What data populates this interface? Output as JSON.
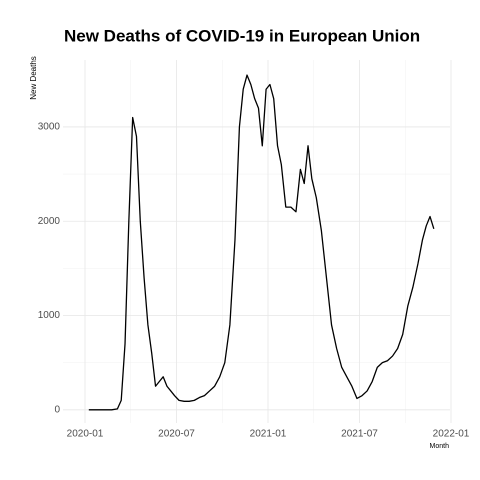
{
  "chart_data": {
    "type": "line",
    "title": "New Deaths of COVID-19 in European Union",
    "ylabel": "New Deaths",
    "xlabel": "Month",
    "x": [
      "2020-01",
      "2020-01",
      "2020-02",
      "2020-02",
      "2020-03",
      "2020-03",
      "2020-03",
      "2020-03",
      "2020-04",
      "2020-04",
      "2020-04",
      "2020-04",
      "2020-05",
      "2020-05",
      "2020-05",
      "2020-05",
      "2020-06",
      "2020-06",
      "2020-06",
      "2020-06",
      "2020-07",
      "2020-07",
      "2020-07",
      "2020-08",
      "2020-08",
      "2020-08",
      "2020-09",
      "2020-09",
      "2020-09",
      "2020-10",
      "2020-10",
      "2020-10",
      "2020-11",
      "2020-11",
      "2020-11",
      "2020-11",
      "2020-12",
      "2020-12",
      "2020-12",
      "2020-12",
      "2021-01",
      "2021-01",
      "2021-01",
      "2021-01",
      "2021-02",
      "2021-02",
      "2021-02",
      "2021-03",
      "2021-03",
      "2021-03",
      "2021-03",
      "2021-04",
      "2021-04",
      "2021-04",
      "2021-05",
      "2021-05",
      "2021-05",
      "2021-06",
      "2021-06",
      "2021-06",
      "2021-07",
      "2021-07",
      "2021-07",
      "2021-08",
      "2021-08",
      "2021-08",
      "2021-09",
      "2021-09",
      "2021-09",
      "2021-10",
      "2021-10",
      "2021-10",
      "2021-11",
      "2021-11",
      "2021-11",
      "2021-11"
    ],
    "series": [
      {
        "name": "New Deaths",
        "color": "#000000",
        "values": [
          0,
          0,
          0,
          0,
          10,
          100,
          700,
          2000,
          3100,
          2900,
          2000,
          1400,
          900,
          600,
          250,
          300,
          350,
          250,
          200,
          150,
          100,
          90,
          90,
          100,
          130,
          150,
          200,
          250,
          350,
          500,
          900,
          1800,
          3000,
          3400,
          3550,
          3450,
          3300,
          3200,
          2800,
          3400,
          3450,
          3300,
          2800,
          2600,
          2150,
          2150,
          2100,
          2550,
          2400,
          2800,
          2450,
          2250,
          1900,
          1400,
          900,
          650,
          450,
          350,
          250,
          120,
          150,
          200,
          300,
          450,
          500,
          520,
          570,
          650,
          800,
          1100,
          1300,
          1550,
          1800,
          1950,
          2050,
          1920
        ]
      }
    ],
    "xticks": [
      "2020-01",
      "2020-07",
      "2021-01",
      "2021-07",
      "2022-01"
    ],
    "ylim": [
      -140,
      3710
    ],
    "yticks": [
      0,
      1000,
      2000,
      3000
    ],
    "grid": true
  }
}
